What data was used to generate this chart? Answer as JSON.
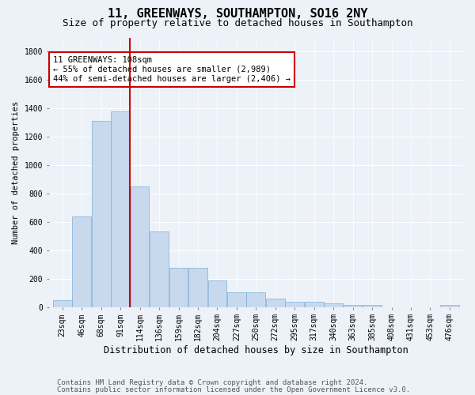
{
  "title1": "11, GREENWAYS, SOUTHAMPTON, SO16 2NY",
  "title2": "Size of property relative to detached houses in Southampton",
  "xlabel": "Distribution of detached houses by size in Southampton",
  "ylabel": "Number of detached properties",
  "bar_color": "#c8d9ee",
  "bar_edge_color": "#7aafd4",
  "bin_labels": [
    "23sqm",
    "46sqm",
    "68sqm",
    "91sqm",
    "114sqm",
    "136sqm",
    "159sqm",
    "182sqm",
    "204sqm",
    "227sqm",
    "250sqm",
    "272sqm",
    "295sqm",
    "317sqm",
    "340sqm",
    "363sqm",
    "385sqm",
    "408sqm",
    "431sqm",
    "453sqm",
    "476sqm"
  ],
  "bar_values": [
    50,
    640,
    1310,
    1380,
    848,
    530,
    275,
    275,
    185,
    105,
    105,
    60,
    38,
    38,
    28,
    15,
    15,
    0,
    0,
    0,
    15
  ],
  "vline_position": 3.5,
  "vline_color": "#cc0000",
  "annotation_text": "11 GREENWAYS: 108sqm\n← 55% of detached houses are smaller (2,989)\n44% of semi-detached houses are larger (2,406) →",
  "annotation_box_color": "#ffffff",
  "annotation_box_edge": "#cc0000",
  "ylim": [
    0,
    1900
  ],
  "yticks": [
    0,
    200,
    400,
    600,
    800,
    1000,
    1200,
    1400,
    1600,
    1800
  ],
  "bg_color": "#edf2f9",
  "plot_bg_color": "#edf2f9",
  "footer1": "Contains HM Land Registry data © Crown copyright and database right 2024.",
  "footer2": "Contains public sector information licensed under the Open Government Licence v3.0.",
  "title1_fontsize": 11,
  "title2_fontsize": 9,
  "xlabel_fontsize": 8.5,
  "ylabel_fontsize": 7.5,
  "tick_fontsize": 7,
  "annotation_fontsize": 7.5,
  "footer_fontsize": 6.5
}
